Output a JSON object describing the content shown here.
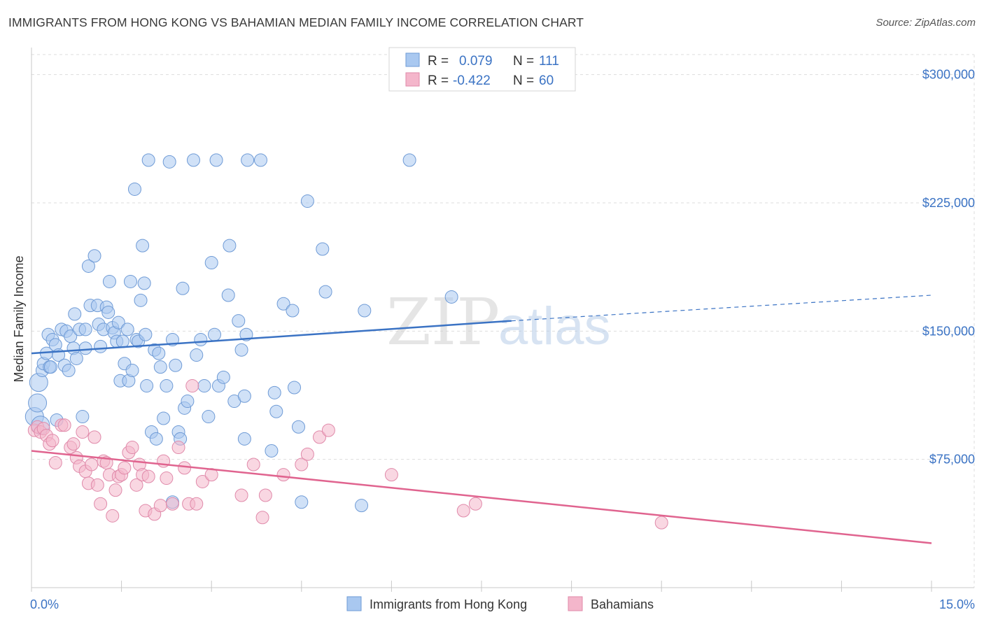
{
  "title": "IMMIGRANTS FROM HONG KONG VS BAHAMIAN MEDIAN FAMILY INCOME CORRELATION CHART",
  "source": "Source: ZipAtlas.com",
  "watermark": {
    "zip": "ZIP",
    "atlas": "atlas"
  },
  "colors": {
    "blue": "#3b73c4",
    "blue_fill": "#a9c8f0",
    "pink": "#e0648f",
    "pink_fill": "#f4b6cb",
    "grid": "#dddddd"
  },
  "legend": {
    "rows": [
      {
        "r_label": "R =",
        "r_value": "0.079",
        "n_label": "N =",
        "n_value": "111"
      },
      {
        "r_label": "R =",
        "r_value": "-0.422",
        "n_label": "N =",
        "n_value": "60"
      }
    ]
  },
  "bottom_legend": [
    "Immigrants from Hong Kong",
    "Bahamians"
  ],
  "chart_data": {
    "type": "scatter",
    "title": "IMMIGRANTS FROM HONG KONG VS BAHAMIAN MEDIAN FAMILY INCOME CORRELATION CHART",
    "xlabel": "",
    "ylabel": "Median Family Income",
    "xlim": [
      0,
      15
    ],
    "ylim": [
      0,
      315000
    ],
    "x_tick_labels": [
      "0.0%",
      "15.0%"
    ],
    "y_ticks": [
      75000,
      150000,
      225000,
      300000
    ],
    "y_tick_labels": [
      "$75,000",
      "$150,000",
      "$225,000",
      "$300,000"
    ],
    "grid": true,
    "legend_position": "top-center",
    "series": [
      {
        "name": "Immigrants from Hong Kong",
        "color": "#3b73c4",
        "trend": {
          "x": [
            0,
            8.0
          ],
          "y": [
            137000,
            156000
          ],
          "dashed_to": [
            15,
            171000
          ]
        },
        "points": [
          [
            0.05,
            100000
          ],
          [
            0.1,
            108000
          ],
          [
            0.12,
            120000
          ],
          [
            0.15,
            95000
          ],
          [
            0.18,
            127000
          ],
          [
            0.2,
            131000
          ],
          [
            0.25,
            137000
          ],
          [
            0.28,
            148000
          ],
          [
            0.3,
            129000
          ],
          [
            0.35,
            145000
          ],
          [
            0.4,
            142000
          ],
          [
            0.42,
            98000
          ],
          [
            0.45,
            136000
          ],
          [
            0.5,
            151000
          ],
          [
            0.55,
            130000
          ],
          [
            0.58,
            150000
          ],
          [
            0.62,
            127000
          ],
          [
            0.65,
            147000
          ],
          [
            0.7,
            140000
          ],
          [
            0.72,
            160000
          ],
          [
            0.75,
            134000
          ],
          [
            0.8,
            151000
          ],
          [
            0.85,
            100000
          ],
          [
            0.9,
            151000
          ],
          [
            0.95,
            188000
          ],
          [
            0.98,
            165000
          ],
          [
            1.05,
            194000
          ],
          [
            1.1,
            165000
          ],
          [
            1.12,
            154000
          ],
          [
            1.15,
            141000
          ],
          [
            1.2,
            151000
          ],
          [
            1.25,
            164000
          ],
          [
            1.28,
            161000
          ],
          [
            1.3,
            179000
          ],
          [
            1.35,
            152000
          ],
          [
            1.38,
            149000
          ],
          [
            1.42,
            144000
          ],
          [
            1.45,
            155000
          ],
          [
            1.48,
            121000
          ],
          [
            1.52,
            144000
          ],
          [
            1.55,
            131000
          ],
          [
            1.6,
            151000
          ],
          [
            1.62,
            121000
          ],
          [
            1.65,
            179000
          ],
          [
            1.68,
            127000
          ],
          [
            1.72,
            233000
          ],
          [
            1.75,
            145000
          ],
          [
            1.78,
            144000
          ],
          [
            1.82,
            168000
          ],
          [
            1.85,
            200000
          ],
          [
            1.88,
            178000
          ],
          [
            1.9,
            148000
          ],
          [
            1.92,
            118000
          ],
          [
            1.95,
            250000
          ],
          [
            2.0,
            91000
          ],
          [
            2.05,
            139000
          ],
          [
            2.08,
            87000
          ],
          [
            2.12,
            137000
          ],
          [
            2.15,
            129000
          ],
          [
            2.2,
            99000
          ],
          [
            2.25,
            118000
          ],
          [
            2.3,
            249000
          ],
          [
            2.35,
            145000
          ],
          [
            2.4,
            130000
          ],
          [
            2.45,
            91000
          ],
          [
            2.48,
            87000
          ],
          [
            2.52,
            175000
          ],
          [
            2.55,
            105000
          ],
          [
            2.6,
            109000
          ],
          [
            2.7,
            250000
          ],
          [
            2.75,
            136000
          ],
          [
            2.82,
            145000
          ],
          [
            2.88,
            118000
          ],
          [
            2.95,
            100000
          ],
          [
            3.0,
            190000
          ],
          [
            3.05,
            148000
          ],
          [
            3.08,
            250000
          ],
          [
            3.12,
            118000
          ],
          [
            3.2,
            123000
          ],
          [
            3.28,
            171000
          ],
          [
            3.3,
            200000
          ],
          [
            3.38,
            109000
          ],
          [
            3.45,
            156000
          ],
          [
            3.5,
            139000
          ],
          [
            3.55,
            112000
          ],
          [
            3.58,
            148000
          ],
          [
            3.6,
            250000
          ],
          [
            3.82,
            250000
          ],
          [
            4.05,
            114000
          ],
          [
            4.08,
            103000
          ],
          [
            4.0,
            80000
          ],
          [
            4.2,
            166000
          ],
          [
            4.35,
            162000
          ],
          [
            4.38,
            117000
          ],
          [
            4.45,
            94000
          ],
          [
            4.5,
            50000
          ],
          [
            4.6,
            226000
          ],
          [
            4.85,
            198000
          ],
          [
            4.9,
            173000
          ],
          [
            5.5,
            48000
          ],
          [
            5.55,
            162000
          ],
          [
            6.3,
            250000
          ],
          [
            7.0,
            170000
          ],
          [
            2.35,
            50000
          ],
          [
            0.32,
            129000
          ],
          [
            0.9,
            140000
          ],
          [
            3.55,
            87000
          ]
        ],
        "sizes_large": [
          [
            0.05,
            100000
          ],
          [
            0.1,
            108000
          ],
          [
            0.12,
            120000
          ],
          [
            0.15,
            95000
          ]
        ]
      },
      {
        "name": "Bahamians",
        "color": "#e0648f",
        "trend": {
          "x": [
            0,
            15
          ],
          "y": [
            80000,
            26000
          ]
        },
        "points": [
          [
            0.05,
            92000
          ],
          [
            0.1,
            94000
          ],
          [
            0.15,
            91000
          ],
          [
            0.2,
            93000
          ],
          [
            0.25,
            89000
          ],
          [
            0.3,
            84000
          ],
          [
            0.35,
            86000
          ],
          [
            0.4,
            73000
          ],
          [
            0.5,
            95000
          ],
          [
            0.55,
            95000
          ],
          [
            0.65,
            82000
          ],
          [
            0.7,
            84000
          ],
          [
            0.75,
            76000
          ],
          [
            0.8,
            71000
          ],
          [
            0.85,
            91000
          ],
          [
            0.9,
            68000
          ],
          [
            0.95,
            61000
          ],
          [
            1.0,
            72000
          ],
          [
            1.05,
            88000
          ],
          [
            1.1,
            60000
          ],
          [
            1.15,
            49000
          ],
          [
            1.2,
            74000
          ],
          [
            1.25,
            73000
          ],
          [
            1.3,
            66000
          ],
          [
            1.35,
            42000
          ],
          [
            1.4,
            57000
          ],
          [
            1.45,
            65000
          ],
          [
            1.5,
            66000
          ],
          [
            1.55,
            70000
          ],
          [
            1.62,
            79000
          ],
          [
            1.68,
            82000
          ],
          [
            1.75,
            60000
          ],
          [
            1.8,
            72000
          ],
          [
            1.85,
            66000
          ],
          [
            1.9,
            45000
          ],
          [
            1.95,
            65000
          ],
          [
            2.05,
            43000
          ],
          [
            2.15,
            48000
          ],
          [
            2.2,
            74000
          ],
          [
            2.25,
            64000
          ],
          [
            2.35,
            49000
          ],
          [
            2.45,
            82000
          ],
          [
            2.55,
            70000
          ],
          [
            2.62,
            49000
          ],
          [
            2.68,
            118000
          ],
          [
            2.75,
            49000
          ],
          [
            2.85,
            62000
          ],
          [
            3.0,
            66000
          ],
          [
            3.5,
            54000
          ],
          [
            3.7,
            72000
          ],
          [
            3.85,
            41000
          ],
          [
            3.9,
            54000
          ],
          [
            4.2,
            66000
          ],
          [
            4.5,
            72000
          ],
          [
            4.6,
            78000
          ],
          [
            4.8,
            88000
          ],
          [
            4.95,
            92000
          ],
          [
            6.0,
            66000
          ],
          [
            7.2,
            45000
          ],
          [
            7.4,
            49000
          ],
          [
            10.5,
            38000
          ]
        ]
      }
    ]
  }
}
